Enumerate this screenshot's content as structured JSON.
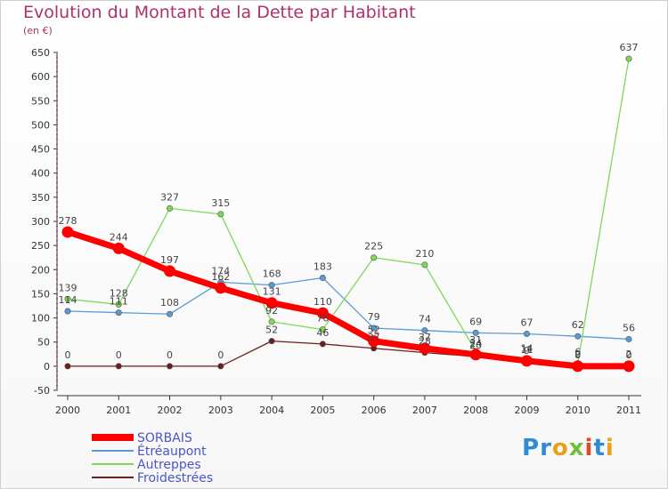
{
  "title": "Evolution du Montant de la Dette par Habitant",
  "unit": "(en €)",
  "logo": "Proxiti",
  "chart_data": {
    "type": "line",
    "x": [
      "2000",
      "2001",
      "2002",
      "2003",
      "2004",
      "2005",
      "2006",
      "2007",
      "2008",
      "2009",
      "2010",
      "2011"
    ],
    "ylim": [
      -50,
      650
    ],
    "yticks": [
      -50,
      0,
      50,
      100,
      150,
      200,
      250,
      300,
      350,
      400,
      450,
      500,
      550,
      600,
      650
    ],
    "grid": false,
    "legend": "bottom-left",
    "series": [
      {
        "name": "SORBAIS",
        "color": "#ff0000",
        "values": [
          278,
          244,
          197,
          162,
          131,
          110,
          52,
          37,
          24,
          11,
          0,
          0
        ]
      },
      {
        "name": "Étréaupont",
        "color": "#5b9bd5",
        "values": [
          114,
          111,
          108,
          174,
          168,
          183,
          79,
          74,
          69,
          67,
          62,
          56
        ]
      },
      {
        "name": "Autreppes",
        "color": "#7ed957",
        "values": [
          139,
          128,
          327,
          315,
          92,
          76,
          225,
          210,
          31,
          14,
          6,
          637
        ]
      },
      {
        "name": "Froidestrées",
        "color": "#6b1e1e",
        "values": [
          0,
          0,
          0,
          0,
          52,
          46,
          37,
          28,
          20,
          9,
          2,
          2
        ]
      }
    ]
  }
}
